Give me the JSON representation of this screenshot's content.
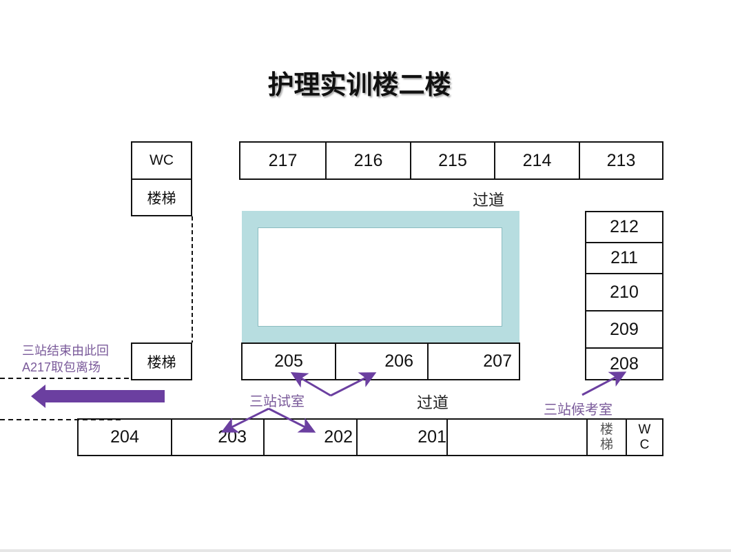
{
  "title": "护理实训楼二楼",
  "top_left": {
    "wc": "WC",
    "stairs": "楼梯"
  },
  "top_row": [
    "217",
    "216",
    "215",
    "214",
    "213"
  ],
  "corridor_top": "过道",
  "right_column": [
    "212",
    "211",
    "210",
    "209",
    "208"
  ],
  "middle_row": [
    "205",
    "206",
    "207"
  ],
  "left_stairs": "楼梯",
  "exit_note": {
    "line1": "三站结束由此回",
    "line2": "A217取包离场"
  },
  "exam_room_label": "三站试室",
  "corridor_bottom": "过道",
  "waiting_room_label": "三站候考室",
  "bottom_row": [
    "204",
    "203",
    "202",
    "201",
    ""
  ],
  "bottom_stairs": "楼梯",
  "bottom_wc": "WC",
  "colors": {
    "courtyard": "#b7dde0",
    "arrow": "#6b3fa0",
    "annotation": "#7a5a9a"
  }
}
